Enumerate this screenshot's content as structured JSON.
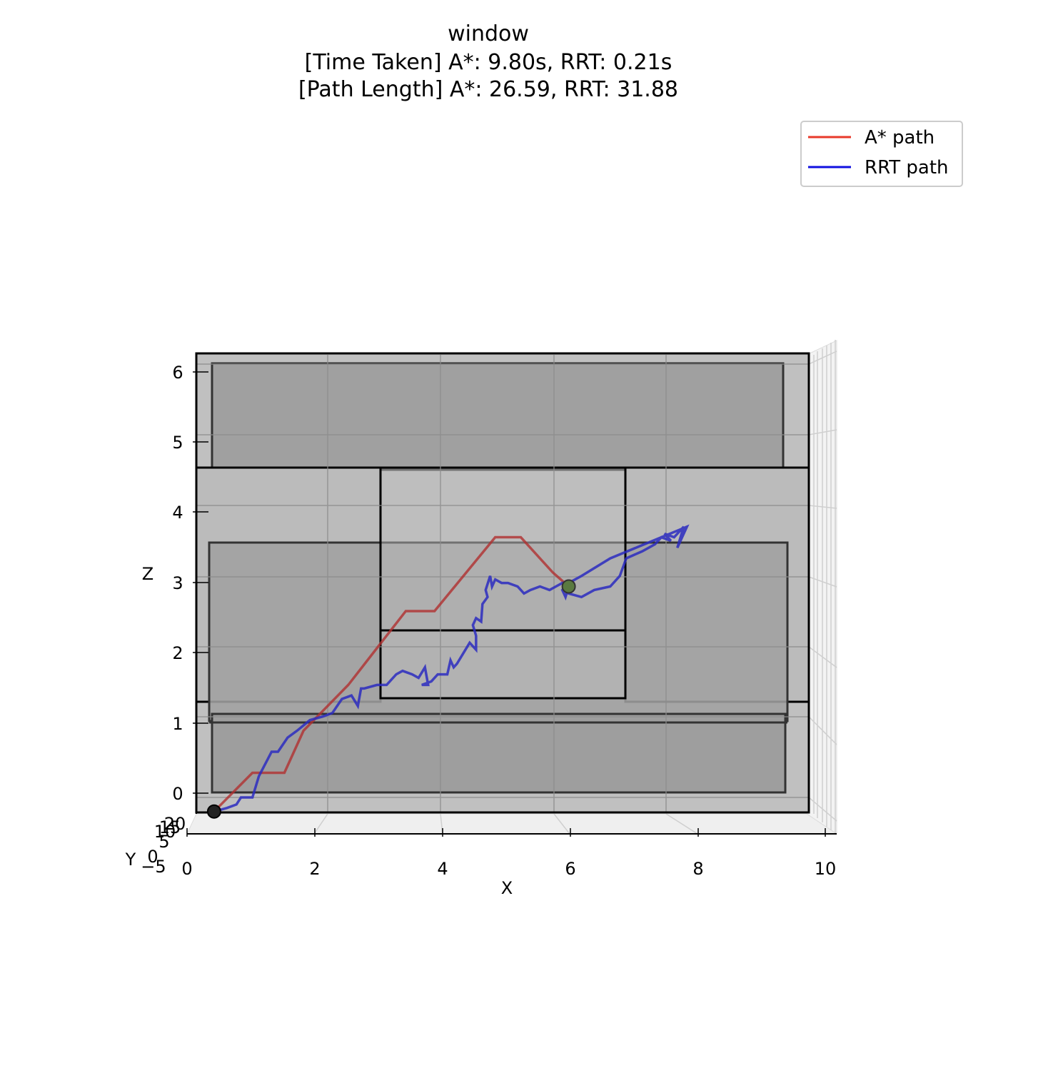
{
  "chart_data": {
    "type": "line",
    "title_lines": [
      "window",
      "[Time Taken] A*: 9.80s, RRT: 0.21s",
      "[Path Length] A*: 26.59, RRT: 31.88"
    ],
    "xlabel": "X",
    "ylabel": "Y",
    "zlabel": "Z",
    "xlim": [
      0,
      10
    ],
    "zlim": [
      -0.3,
      6.2
    ],
    "x_ticks": [
      "0",
      "2",
      "4",
      "6",
      "8",
      "10"
    ],
    "z_ticks": [
      "0",
      "1",
      "2",
      "3",
      "4",
      "5",
      "6"
    ],
    "y_ticks": [
      "−5",
      "0",
      "5",
      "10",
      "15",
      "20"
    ],
    "view": "front (x–z)",
    "grid": true,
    "legend": {
      "placement": "top-right",
      "entries": [
        {
          "label": "A* path",
          "color": "#e8392a"
        },
        {
          "label": "RRT path",
          "color": "#1010e0"
        }
      ]
    },
    "start": {
      "x": 0.2,
      "z": -0.2
    },
    "goal": {
      "x": 5.75,
      "z": 3.0
    },
    "obstacles": [
      {
        "name": "upper-slab",
        "x": [
          0.25,
          9.3
        ],
        "z": [
          4.5,
          6.15
        ]
      },
      {
        "name": "left-middle-block",
        "x": [
          0.2,
          9.35
        ],
        "z": [
          0.95,
          3.5
        ]
      },
      {
        "name": "lower-slab",
        "x": [
          0.25,
          9.3
        ],
        "z": [
          0,
          1.0
        ]
      },
      {
        "name": "window-wall",
        "x": [
          0,
          9.75
        ],
        "z": [
          -0.2,
          6.3
        ]
      }
    ],
    "series": [
      {
        "name": "A* path",
        "color": "#b03030",
        "x": [
          0.2,
          0.8,
          1.3,
          1.6,
          2.3,
          3.2,
          3.65,
          4.6,
          5.0,
          5.5,
          5.75
        ],
        "z": [
          -0.2,
          0.35,
          0.35,
          0.95,
          1.6,
          2.65,
          2.65,
          3.7,
          3.7,
          3.2,
          3.0
        ]
      },
      {
        "name": "RRT path",
        "color": "#2b2bbf",
        "x": [
          0.2,
          0.4,
          0.55,
          0.62,
          0.8,
          0.9,
          1.1,
          1.2,
          1.35,
          1.5,
          1.7,
          1.9,
          2.05,
          2.2,
          2.35,
          2.45,
          2.5,
          2.55,
          2.75,
          2.9,
          3.05,
          3.15,
          3.3,
          3.4,
          3.5,
          3.55,
          3.45,
          3.6,
          3.7,
          3.85,
          3.9,
          3.95,
          4.0,
          4.1,
          4.2,
          4.3,
          4.3,
          4.25,
          4.3,
          4.38,
          4.4,
          4.48,
          4.45,
          4.52,
          4.55,
          4.6,
          4.7,
          4.8,
          4.95,
          5.05,
          5.15,
          5.3,
          5.45,
          5.55,
          5.65,
          5.75,
          5.95,
          6.15,
          6.4,
          6.55,
          6.65,
          6.9,
          7.1,
          7.2,
          7.35,
          7.25,
          7.4,
          7.55,
          7.45,
          7.6,
          6.4,
          5.95,
          5.75,
          5.65,
          5.7,
          5.75
        ],
        "z": [
          -0.2,
          -0.15,
          -0.1,
          0.0,
          0.0,
          0.3,
          0.65,
          0.65,
          0.85,
          0.95,
          1.1,
          1.15,
          1.2,
          1.4,
          1.45,
          1.3,
          1.55,
          1.55,
          1.6,
          1.6,
          1.75,
          1.8,
          1.75,
          1.7,
          1.85,
          1.6,
          1.6,
          1.65,
          1.75,
          1.75,
          1.95,
          1.85,
          1.9,
          2.05,
          2.2,
          2.1,
          2.3,
          2.45,
          2.55,
          2.5,
          2.75,
          2.85,
          2.95,
          3.15,
          3.0,
          3.1,
          3.05,
          3.05,
          3.0,
          2.9,
          2.95,
          3.0,
          2.95,
          3.0,
          3.05,
          2.9,
          2.85,
          2.95,
          3.0,
          3.15,
          3.4,
          3.5,
          3.6,
          3.7,
          3.65,
          3.75,
          3.7,
          3.85,
          3.55,
          3.85,
          3.4,
          3.15,
          3.05,
          2.95,
          2.85,
          3.0
        ]
      }
    ]
  }
}
